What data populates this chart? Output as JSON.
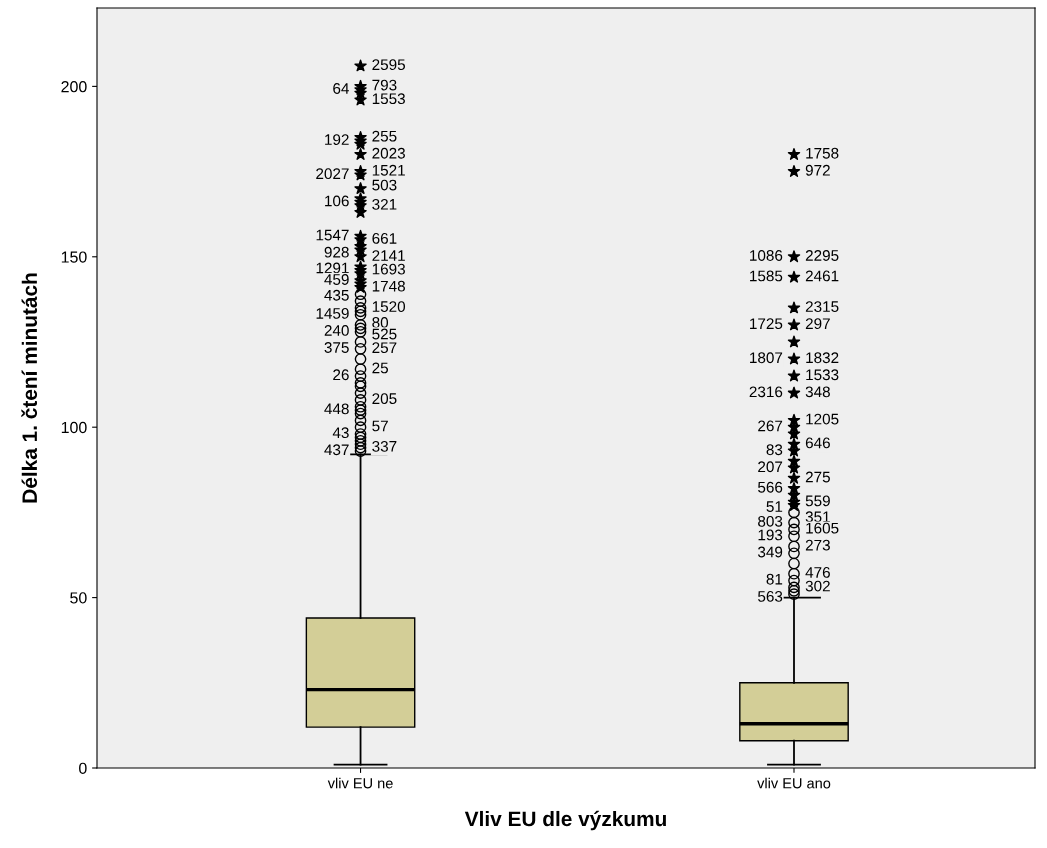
{
  "chart_data": {
    "type": "box",
    "xlabel": "Vliv EU dle výzkumu",
    "ylabel": "Délka 1. čtení minutách",
    "categories": [
      "vliv EU ne",
      "vliv EU ano"
    ],
    "ylim": [
      0,
      223
    ],
    "yticks": [
      0,
      50,
      100,
      150,
      200
    ],
    "grid": false,
    "legend": false,
    "boxes": [
      {
        "low": 1,
        "q1": 12,
        "median": 23,
        "q3": 44,
        "high": 92
      },
      {
        "low": 1,
        "q1": 8,
        "median": 13,
        "q3": 25,
        "high": 50
      }
    ],
    "color": "#d3ce97",
    "series": [
      {
        "type": "scatter",
        "marker": "circle",
        "color": "#000000",
        "x": [
          "vliv EU ne",
          "vliv EU ne",
          "vliv EU ne",
          "vliv EU ne",
          "vliv EU ne",
          "vliv EU ne",
          "vliv EU ne",
          "vliv EU ne",
          "vliv EU ne",
          "vliv EU ne",
          "vliv EU ne",
          "vliv EU ne",
          "vliv EU ne",
          "vliv EU ne",
          "vliv EU ne",
          "vliv EU ne",
          "vliv EU ne",
          "vliv EU ne",
          "vliv EU ne",
          "vliv EU ne",
          "vliv EU ne",
          "vliv EU ne",
          "vliv EU ne",
          "vliv EU ne",
          "vliv EU ne",
          "vliv EU ne",
          "vliv EU ne",
          "vliv EU ne",
          "vliv EU ano",
          "vliv EU ano",
          "vliv EU ano",
          "vliv EU ano",
          "vliv EU ano",
          "vliv EU ano",
          "vliv EU ano",
          "vliv EU ano",
          "vliv EU ano",
          "vliv EU ano",
          "vliv EU ano",
          "vliv EU ano"
        ],
        "values": [
          93,
          94,
          95,
          96,
          97,
          98,
          100,
          102,
          104,
          105,
          106,
          108,
          110,
          112,
          113,
          115,
          117,
          120,
          123,
          125,
          128,
          129,
          130,
          133,
          134,
          135,
          137,
          139,
          51,
          52,
          53,
          55,
          57,
          60,
          63,
          65,
          68,
          70,
          72,
          75
        ]
      },
      {
        "type": "scatter",
        "marker": "star",
        "color": "#000000",
        "x": [
          "vliv EU ne",
          "vliv EU ne",
          "vliv EU ne",
          "vliv EU ne",
          "vliv EU ne",
          "vliv EU ne",
          "vliv EU ne",
          "vliv EU ne",
          "vliv EU ne",
          "vliv EU ne",
          "vliv EU ne",
          "vliv EU ne",
          "vliv EU ne",
          "vliv EU ne",
          "vliv EU ne",
          "vliv EU ne",
          "vliv EU ne",
          "vliv EU ne",
          "vliv EU ne",
          "vliv EU ne",
          "vliv EU ne",
          "vliv EU ne",
          "vliv EU ne",
          "vliv EU ne",
          "vliv EU ne",
          "vliv EU ne",
          "vliv EU ne",
          "vliv EU ano",
          "vliv EU ano",
          "vliv EU ano",
          "vliv EU ano",
          "vliv EU ano",
          "vliv EU ano",
          "vliv EU ano",
          "vliv EU ano",
          "vliv EU ano",
          "vliv EU ano",
          "vliv EU ano",
          "vliv EU ano",
          "vliv EU ano",
          "vliv EU ano",
          "vliv EU ano",
          "vliv EU ano",
          "vliv EU ano",
          "vliv EU ano",
          "vliv EU ano",
          "vliv EU ano",
          "vliv EU ano",
          "vliv EU ano"
        ],
        "values": [
          141,
          142,
          143,
          145,
          146,
          147,
          150,
          152,
          153,
          155,
          156,
          163,
          165,
          166,
          167,
          170,
          174,
          175,
          180,
          183,
          184,
          185,
          196,
          198,
          199,
          200,
          206,
          77,
          78,
          80,
          82,
          85,
          88,
          90,
          93,
          95,
          98,
          100,
          102,
          110,
          115,
          120,
          125,
          130,
          135,
          144,
          150,
          175,
          180
        ]
      }
    ],
    "annotations": [
      {
        "text": "2595",
        "x": "vliv EU ne",
        "y": 206
      },
      {
        "text": "793",
        "x": "vliv EU ne",
        "y": 200
      },
      {
        "text": "64",
        "x": "vliv EU ne",
        "y": 199
      },
      {
        "text": "1553",
        "x": "vliv EU ne",
        "y": 196
      },
      {
        "text": "255",
        "x": "vliv EU ne",
        "y": 185
      },
      {
        "text": "192",
        "x": "vliv EU ne",
        "y": 184
      },
      {
        "text": "2023",
        "x": "vliv EU ne",
        "y": 180
      },
      {
        "text": "1521",
        "x": "vliv EU ne",
        "y": 175
      },
      {
        "text": "2027",
        "x": "vliv EU ne",
        "y": 174
      },
      {
        "text": "321",
        "x": "vliv EU ne",
        "y": 165
      },
      {
        "text": "106",
        "x": "vliv EU ne",
        "y": 166
      },
      {
        "text": "503",
        "x": "vliv EU ne",
        "y": 167
      },
      {
        "text": "661",
        "x": "vliv EU ne",
        "y": 155
      },
      {
        "text": "1547",
        "x": "vliv EU ne",
        "y": 156
      },
      {
        "text": "928",
        "x": "vliv EU ne",
        "y": 153
      },
      {
        "text": "2141",
        "x": "vliv EU ne",
        "y": 152
      },
      {
        "text": "1291",
        "x": "vliv EU ne",
        "y": 150
      },
      {
        "text": "1693",
        "x": "vliv EU ne",
        "y": 146
      },
      {
        "text": "459",
        "x": "vliv EU ne",
        "y": 145
      },
      {
        "text": "1748",
        "x": "vliv EU ne",
        "y": 141
      },
      {
        "text": "435",
        "x": "vliv EU ne",
        "y": 142
      },
      {
        "text": "1520",
        "x": "vliv EU ne",
        "y": 135
      },
      {
        "text": "1459",
        "x": "vliv EU ne",
        "y": 133
      },
      {
        "text": "80",
        "x": "vliv EU ne",
        "y": 134
      },
      {
        "text": "240",
        "x": "vliv EU ne",
        "y": 128
      },
      {
        "text": "525",
        "x": "vliv EU ne",
        "y": 129
      },
      {
        "text": "257",
        "x": "vliv EU ne",
        "y": 125
      },
      {
        "text": "375",
        "x": "vliv EU ne",
        "y": 123
      },
      {
        "text": "25",
        "x": "vliv EU ne",
        "y": 117
      },
      {
        "text": "26",
        "x": "vliv EU ne",
        "y": 115
      },
      {
        "text": "205",
        "x": "vliv EU ne",
        "y": 108
      },
      {
        "text": "448",
        "x": "vliv EU ne",
        "y": 105
      },
      {
        "text": "57",
        "x": "vliv EU ne",
        "y": 100
      },
      {
        "text": "43",
        "x": "vliv EU ne",
        "y": 98
      },
      {
        "text": "337",
        "x": "vliv EU ne",
        "y": 94
      },
      {
        "text": "437",
        "x": "vliv EU ne",
        "y": 93
      },
      {
        "text": "1758",
        "x": "vliv EU ano",
        "y": 180
      },
      {
        "text": "972",
        "x": "vliv EU ano",
        "y": 175
      },
      {
        "text": "2295",
        "x": "vliv EU ano",
        "y": 150
      },
      {
        "text": "1086",
        "x": "vliv EU ano",
        "y": 150
      },
      {
        "text": "2461",
        "x": "vliv EU ano",
        "y": 144
      },
      {
        "text": "1585",
        "x": "vliv EU ano",
        "y": 144
      },
      {
        "text": "2315",
        "x": "vliv EU ano",
        "y": 135
      },
      {
        "text": "297",
        "x": "vliv EU ano",
        "y": 130
      },
      {
        "text": "1725",
        "x": "vliv EU ano",
        "y": 130
      },
      {
        "text": "1832",
        "x": "vliv EU ano",
        "y": 120
      },
      {
        "text": "1807",
        "x": "vliv EU ano",
        "y": 120
      },
      {
        "text": "1533",
        "x": "vliv EU ano",
        "y": 115
      },
      {
        "text": "348",
        "x": "vliv EU ano",
        "y": 110
      },
      {
        "text": "2316",
        "x": "vliv EU ano",
        "y": 110
      },
      {
        "text": "1205",
        "x": "vliv EU ano",
        "y": 102
      },
      {
        "text": "267",
        "x": "vliv EU ano",
        "y": 100
      },
      {
        "text": "646",
        "x": "vliv EU ano",
        "y": 95
      },
      {
        "text": "83",
        "x": "vliv EU ano",
        "y": 93
      },
      {
        "text": "275",
        "x": "vliv EU ano",
        "y": 85
      },
      {
        "text": "207",
        "x": "vliv EU ano",
        "y": 88
      },
      {
        "text": "566",
        "x": "vliv EU ano",
        "y": 82
      },
      {
        "text": "559",
        "x": "vliv EU ano",
        "y": 78
      },
      {
        "text": "51",
        "x": "vliv EU ano",
        "y": 80
      },
      {
        "text": "351",
        "x": "vliv EU ano",
        "y": 77
      },
      {
        "text": "803",
        "x": "vliv EU ano",
        "y": 72
      },
      {
        "text": "1605",
        "x": "vliv EU ano",
        "y": 70
      },
      {
        "text": "193",
        "x": "vliv EU ano",
        "y": 68
      },
      {
        "text": "273",
        "x": "vliv EU ano",
        "y": 65
      },
      {
        "text": "349",
        "x": "vliv EU ano",
        "y": 63
      },
      {
        "text": "476",
        "x": "vliv EU ano",
        "y": 57
      },
      {
        "text": "81",
        "x": "vliv EU ano",
        "y": 55
      },
      {
        "text": "302",
        "x": "vliv EU ano",
        "y": 53
      },
      {
        "text": "563",
        "x": "vliv EU ano",
        "y": 52
      }
    ]
  }
}
